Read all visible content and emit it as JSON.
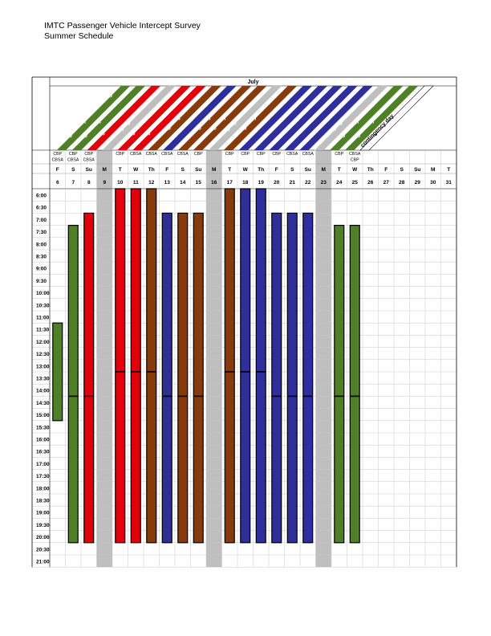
{
  "header": {
    "title": "IMTC Passenger Vehicle Intercept Survey",
    "subtitle": "Summer Schedule"
  },
  "month": "July",
  "colors": {
    "green": "#4f7f27",
    "red": "#e0000b",
    "brown": "#873b0b",
    "blue": "#2f2f9b",
    "gray": "#bfbfbf",
    "white": "#ffffff"
  },
  "banners": [
    {
      "label": "Aldergrove-Lynden Training",
      "color": "green"
    },
    {
      "label": "Aldergrove-Lynden NB & SB",
      "color": "green"
    },
    {
      "label": "Huntingdon-Sumas NB & SB",
      "color": "red"
    },
    {
      "label": "No surveying",
      "color": "gray"
    },
    {
      "label": "Huntingdon-Sumas SB",
      "color": "red"
    },
    {
      "label": "Huntingdon-Sumas NB",
      "color": "red"
    },
    {
      "label": "Pacific Highway NB",
      "color": "brown"
    },
    {
      "label": "Peace Arch NB",
      "color": "blue"
    },
    {
      "label": "Pacific Highway NB",
      "color": "brown"
    },
    {
      "label": "Pacific Highway SB",
      "color": "brown"
    },
    {
      "label": "No surveying",
      "color": "gray"
    },
    {
      "label": "Pacific Highway SB",
      "color": "brown"
    },
    {
      "label": "Peace Arch NB",
      "color": "blue"
    },
    {
      "label": "Peace Arch SB",
      "color": "blue"
    },
    {
      "label": "Peace Arch SB",
      "color": "blue"
    },
    {
      "label": "Peace Arch SB",
      "color": "blue"
    },
    {
      "label": "Peace Arch NB",
      "color": "blue"
    },
    {
      "label": "No surveying",
      "color": "gray"
    },
    {
      "label": "Aldergrove-Lynden SB",
      "color": "green"
    },
    {
      "label": "Aldergrove-Lynden NB",
      "color": "green"
    },
    {
      "label": "contingency day",
      "color": "white"
    }
  ],
  "days": [
    {
      "agency": [
        "CBP",
        "CBSA"
      ],
      "dow": "F",
      "date": "6",
      "color": "green",
      "start": 11.5,
      "end": 15.5,
      "split": null
    },
    {
      "agency": [
        "CBP",
        "CBSA"
      ],
      "dow": "S",
      "date": "7",
      "color": "green",
      "start": 7.5,
      "end": 20.5,
      "split": 14.5
    },
    {
      "agency": [
        "CBP",
        "CBSA"
      ],
      "dow": "Su",
      "date": "8",
      "color": "red",
      "start": 7.0,
      "end": 20.5,
      "split": 14.5
    },
    {
      "agency": [],
      "dow": "M",
      "date": "9",
      "color": "gray",
      "start": null,
      "end": null,
      "split": null
    },
    {
      "agency": [
        "CBP"
      ],
      "dow": "T",
      "date": "10",
      "color": "red",
      "start": 6.0,
      "end": 20.5,
      "split": 13.5
    },
    {
      "agency": [
        "CBSA"
      ],
      "dow": "W",
      "date": "11",
      "color": "red",
      "start": 6.0,
      "end": 20.5,
      "split": 13.5
    },
    {
      "agency": [
        "CBSA"
      ],
      "dow": "Th",
      "date": "12",
      "color": "brown",
      "start": 6.0,
      "end": 20.5,
      "split": 13.5
    },
    {
      "agency": [
        "CBSA"
      ],
      "dow": "F",
      "date": "13",
      "color": "blue",
      "start": 7.0,
      "end": 20.5,
      "split": 14.5
    },
    {
      "agency": [
        "CBSA"
      ],
      "dow": "S",
      "date": "14",
      "color": "brown",
      "start": 7.0,
      "end": 20.5,
      "split": 14.5
    },
    {
      "agency": [
        "CBP"
      ],
      "dow": "Su",
      "date": "15",
      "color": "brown",
      "start": 7.0,
      "end": 20.5,
      "split": 14.5
    },
    {
      "agency": [],
      "dow": "M",
      "date": "16",
      "color": "gray",
      "start": null,
      "end": null,
      "split": null
    },
    {
      "agency": [
        "CBP"
      ],
      "dow": "T",
      "date": "17",
      "color": "brown",
      "start": 6.0,
      "end": 20.5,
      "split": 13.5
    },
    {
      "agency": [
        "CBP"
      ],
      "dow": "W",
      "date": "18",
      "color": "blue",
      "start": 6.0,
      "end": 20.5,
      "split": 13.5
    },
    {
      "agency": [
        "CBP"
      ],
      "dow": "Th",
      "date": "19",
      "color": "blue",
      "start": 6.0,
      "end": 20.5,
      "split": 13.5
    },
    {
      "agency": [
        "CBP"
      ],
      "dow": "F",
      "date": "20",
      "color": "blue",
      "start": 7.0,
      "end": 20.5,
      "split": 14.5
    },
    {
      "agency": [
        "CBSA"
      ],
      "dow": "S",
      "date": "21",
      "color": "blue",
      "start": 7.0,
      "end": 20.5,
      "split": 14.5
    },
    {
      "agency": [
        "CBSA"
      ],
      "dow": "Su",
      "date": "22",
      "color": "blue",
      "start": 7.0,
      "end": 20.5,
      "split": 14.5
    },
    {
      "agency": [],
      "dow": "M",
      "date": "23",
      "color": "gray",
      "start": null,
      "end": null,
      "split": null
    },
    {
      "agency": [
        "CBP"
      ],
      "dow": "T",
      "date": "24",
      "color": "green",
      "start": 7.5,
      "end": 20.5,
      "split": 14.5
    },
    {
      "agency": [
        "CBSA",
        "CBP"
      ],
      "dow": "W",
      "date": "25",
      "color": "green",
      "start": 7.5,
      "end": 20.5,
      "split": 14.5
    },
    {
      "agency": [],
      "dow": "Th",
      "date": "26",
      "color": null,
      "start": null,
      "end": null,
      "split": null
    },
    {
      "agency": [],
      "dow": "F",
      "date": "27",
      "color": null,
      "start": null,
      "end": null,
      "split": null
    },
    {
      "agency": [],
      "dow": "S",
      "date": "28",
      "color": null,
      "start": null,
      "end": null,
      "split": null
    },
    {
      "agency": [],
      "dow": "Su",
      "date": "29",
      "color": null,
      "start": null,
      "end": null,
      "split": null
    },
    {
      "agency": [],
      "dow": "M",
      "date": "30",
      "color": null,
      "start": null,
      "end": null,
      "split": null
    },
    {
      "agency": [],
      "dow": "T",
      "date": "31",
      "color": null,
      "start": null,
      "end": null,
      "split": null
    }
  ],
  "times": [
    "6:00",
    "6:30",
    "7:00",
    "7:30",
    "8:00",
    "8:30",
    "9:00",
    "9:30",
    "10:00",
    "10:30",
    "11:00",
    "11:30",
    "12:00",
    "12:30",
    "13:00",
    "13:30",
    "14:00",
    "14:30",
    "15:00",
    "15:30",
    "16:00",
    "16:30",
    "17:00",
    "17:30",
    "18:00",
    "18:30",
    "19:00",
    "19:30",
    "20:00",
    "20:30",
    "21:00"
  ]
}
